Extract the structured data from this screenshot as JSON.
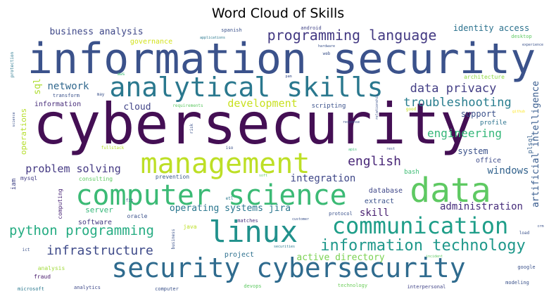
{
  "chart_data": {
    "type": "wordcloud",
    "title": "Word Cloud of Skills",
    "colormap": "viridis",
    "background": "#ffffff",
    "words": [
      {
        "text": "cybersecurity",
        "weight": 100,
        "color": "#440f54"
      },
      {
        "text": "information security",
        "weight": 74,
        "color": "#3b528b"
      },
      {
        "text": "data",
        "weight": 56,
        "color": "#5ec962"
      },
      {
        "text": "linux",
        "weight": 50,
        "color": "#21918c"
      },
      {
        "text": "management",
        "weight": 48,
        "color": "#bddf26"
      },
      {
        "text": "computer science",
        "weight": 46,
        "color": "#3bba75"
      },
      {
        "text": "analytical skills",
        "weight": 44,
        "color": "#2a788e"
      },
      {
        "text": "security cybersecurity",
        "weight": 44,
        "color": "#2f6b8e"
      },
      {
        "text": "communication",
        "weight": 36,
        "color": "#1f9e89"
      },
      {
        "text": "information technology",
        "weight": 28,
        "color": "#1f988b"
      },
      {
        "text": "programming language",
        "weight": 24,
        "color": "#443a83"
      },
      {
        "text": "python programming",
        "weight": 22,
        "color": "#25ac82"
      },
      {
        "text": "english",
        "weight": 20,
        "color": "#482677"
      },
      {
        "text": "infrastructure",
        "weight": 20,
        "color": "#3e4a89"
      },
      {
        "text": "data privacy",
        "weight": 19,
        "color": "#433e85"
      },
      {
        "text": "troubleshooting",
        "weight": 19,
        "color": "#287d8e"
      },
      {
        "text": "engineering",
        "weight": 18,
        "color": "#35b779"
      },
      {
        "text": "problem solving",
        "weight": 17,
        "color": "#443983"
      },
      {
        "text": "development",
        "weight": 17,
        "color": "#c8e020"
      },
      {
        "text": "network",
        "weight": 16,
        "color": "#31688e"
      },
      {
        "text": "administration",
        "weight": 16,
        "color": "#472d7b"
      },
      {
        "text": "integration",
        "weight": 16,
        "color": "#3f4788"
      },
      {
        "text": "windows",
        "weight": 16,
        "color": "#33638d"
      },
      {
        "text": "skill",
        "weight": 16,
        "color": "#481f70"
      },
      {
        "text": "operating systems jira",
        "weight": 15,
        "color": "#2a768e"
      },
      {
        "text": "active directory",
        "weight": 15,
        "color": "#7ad151"
      },
      {
        "text": "business analysis",
        "weight": 14,
        "color": "#3f4889"
      },
      {
        "text": "cloud",
        "weight": 14,
        "color": "#414487"
      },
      {
        "text": "support",
        "weight": 13,
        "color": "#3b528b"
      },
      {
        "text": "system",
        "weight": 13,
        "color": "#3b528b"
      },
      {
        "text": "identity access",
        "weight": 12,
        "color": "#2c728e"
      },
      {
        "text": "sql",
        "weight": 13,
        "color": "#addc30"
      },
      {
        "text": "artificial intelligence",
        "weight": 13,
        "color": "#375b8d"
      },
      {
        "text": "server",
        "weight": 12,
        "color": "#35b779"
      },
      {
        "text": "governance",
        "weight": 11,
        "color": "#d2e21b"
      },
      {
        "text": "operations",
        "weight": 11,
        "color": "#b5de2b"
      },
      {
        "text": "database",
        "weight": 11,
        "color": "#3f4788"
      },
      {
        "text": "information",
        "weight": 11,
        "color": "#472c7a"
      },
      {
        "text": "extract",
        "weight": 10,
        "color": "#3b528b"
      },
      {
        "text": "project",
        "weight": 10,
        "color": "#2d708e"
      },
      {
        "text": "office",
        "weight": 10,
        "color": "#3e4c8a"
      },
      {
        "text": "software",
        "weight": 10,
        "color": "#453882"
      },
      {
        "text": "profile",
        "weight": 9,
        "color": "#2c738e"
      },
      {
        "text": "plsql",
        "weight": 9,
        "color": "#355f8d"
      },
      {
        "text": "scripting",
        "weight": 9,
        "color": "#3b528b"
      },
      {
        "text": "iam",
        "weight": 9,
        "color": "#414487"
      },
      {
        "text": "bash",
        "weight": 9,
        "color": "#3dbc74"
      },
      {
        "text": "prevention",
        "weight": 8,
        "color": "#38588c"
      },
      {
        "text": "java",
        "weight": 8,
        "color": "#bddf26"
      },
      {
        "text": "consulting",
        "weight": 8,
        "color": "#5ec962"
      },
      {
        "text": "computing",
        "weight": 8,
        "color": "#482475"
      },
      {
        "text": "mysql",
        "weight": 8,
        "color": "#433e85"
      },
      {
        "text": "oracle",
        "weight": 8,
        "color": "#3b528b"
      },
      {
        "text": "architecture",
        "weight": 8,
        "color": "#8fd744"
      },
      {
        "text": "fraud",
        "weight": 8,
        "color": "#481a6c"
      },
      {
        "text": "analysis",
        "weight": 8,
        "color": "#a0da39"
      },
      {
        "text": "google",
        "weight": 7,
        "color": "#3b528b"
      },
      {
        "text": "transform",
        "weight": 7,
        "color": "#3b528b"
      },
      {
        "text": "matches",
        "weight": 7,
        "color": "#472d7b"
      },
      {
        "text": "analytics",
        "weight": 7,
        "color": "#3e4989"
      },
      {
        "text": "microsoft",
        "weight": 7,
        "color": "#2a788e"
      },
      {
        "text": "computer",
        "weight": 7,
        "color": "#3b528b"
      },
      {
        "text": "devops",
        "weight": 7,
        "color": "#5ec962"
      },
      {
        "text": "technology",
        "weight": 7,
        "color": "#6ccd5a"
      },
      {
        "text": "interpersonal",
        "weight": 7,
        "color": "#414487"
      },
      {
        "text": "modeling",
        "weight": 7,
        "color": "#3b528b"
      },
      {
        "text": "desktop",
        "weight": 7,
        "color": "#5ec962"
      },
      {
        "text": "spanish",
        "weight": 7,
        "color": "#3b528b"
      },
      {
        "text": "android",
        "weight": 7,
        "color": "#414487"
      },
      {
        "text": "protocol",
        "weight": 7,
        "color": "#3b528b"
      },
      {
        "text": "risk",
        "weight": 6,
        "color": "#3b528b"
      },
      {
        "text": "requirements",
        "weight": 6,
        "color": "#5ec962"
      },
      {
        "text": "load",
        "weight": 6,
        "color": "#3b528b"
      },
      {
        "text": "protection",
        "weight": 6,
        "color": "#2a788e"
      },
      {
        "text": "fullstack",
        "weight": 6,
        "color": "#b5de2b"
      },
      {
        "text": "business",
        "weight": 6,
        "color": "#3b528b"
      },
      {
        "text": "iso",
        "weight": 6,
        "color": "#3b528b"
      },
      {
        "text": "may",
        "weight": 6,
        "color": "#3b528b"
      },
      {
        "text": "web",
        "weight": 6,
        "color": "#3b528b"
      },
      {
        "text": "good",
        "weight": 6,
        "color": "#c8e020"
      },
      {
        "text": "aws",
        "weight": 6,
        "color": "#3bba75"
      },
      {
        "text": "ict",
        "weight": 6,
        "color": "#3b528b"
      },
      {
        "text": "etl",
        "weight": 6,
        "color": "#2a788e"
      },
      {
        "text": "fit",
        "weight": 6,
        "color": "#3b528b"
      },
      {
        "text": "experience",
        "weight": 5,
        "color": "#3b528b"
      },
      {
        "text": "applications",
        "weight": 5,
        "color": "#2a788e"
      },
      {
        "text": "hardware",
        "weight": 5,
        "color": "#3b528b"
      },
      {
        "text": "pam",
        "weight": 5,
        "color": "#3b528b"
      },
      {
        "text": "relationship",
        "weight": 5,
        "color": "#3b528b"
      },
      {
        "text": "response",
        "weight": 5,
        "color": "#3b528b"
      },
      {
        "text": "apis",
        "weight": 5,
        "color": "#3bba75"
      },
      {
        "text": "rest",
        "weight": 5,
        "color": "#3b528b"
      },
      {
        "text": "soft",
        "weight": 5,
        "color": "#5ec962"
      },
      {
        "text": "customer",
        "weight": 5,
        "color": "#3b528b"
      },
      {
        "text": "securities",
        "weight": 5,
        "color": "#2a788e"
      },
      {
        "text": "incident",
        "weight": 5,
        "color": "#5ec962"
      },
      {
        "text": "github",
        "weight": 5,
        "color": "#fde725"
      },
      {
        "text": "crm",
        "weight": 5,
        "color": "#3b528b"
      },
      {
        "text": "science",
        "weight": 4,
        "color": "#3b528b"
      }
    ]
  }
}
